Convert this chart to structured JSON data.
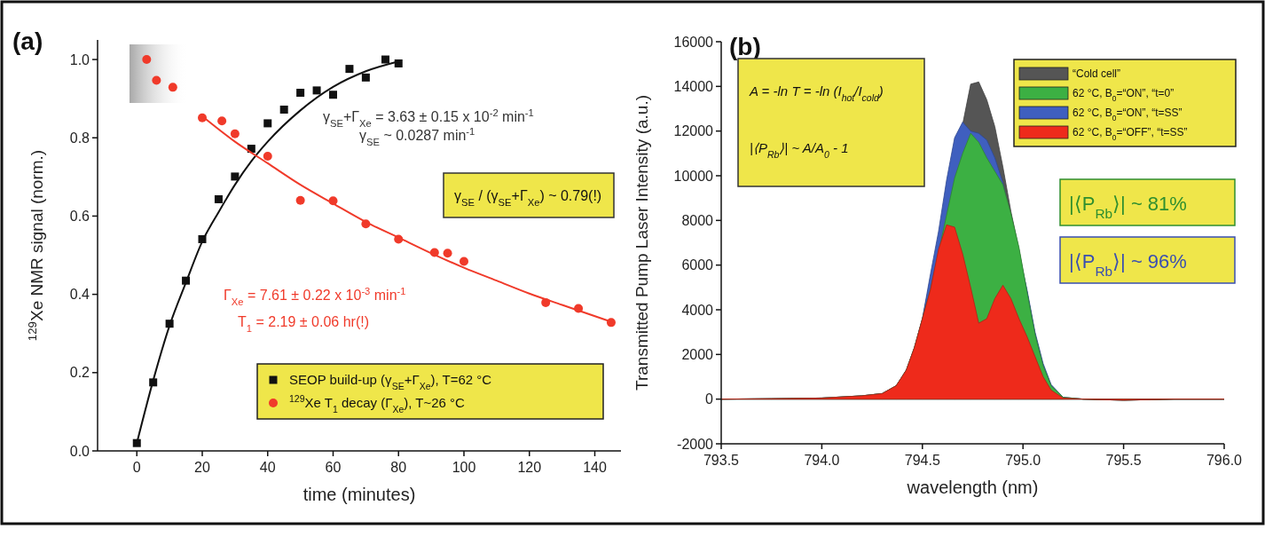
{
  "chart_data": [
    {
      "type": "scatter",
      "title": "(a)",
      "xlabel": "time (minutes)",
      "ylabel": "$^{129}$Xe NMR signal (norm.)",
      "xlim": [
        -12,
        148
      ],
      "ylim": [
        0,
        1.05
      ],
      "xticks": [
        0,
        20,
        40,
        60,
        80,
        100,
        120,
        140
      ],
      "yticks": [
        {
          "value": 0,
          "label": "0.0"
        },
        {
          "value": 0.2,
          "label": "0.2"
        },
        {
          "value": 0.4,
          "label": "0.4"
        },
        {
          "value": 0.6,
          "label": "0.6"
        },
        {
          "value": 0.8,
          "label": "0.8"
        },
        {
          "value": 1,
          "label": "1.0"
        }
      ],
      "legend": "bottom right",
      "annotations": [
        "γ$_{SE}$+Γ$_{Xe}$ = 3.63 ± 0.15 x 10$^{-2}$ min$^{-1}$",
        "γ$_{SE}$ ~ 0.0287 min$^{-1}$",
        "γ$_{SE}$ / (γ$_{SE}$+Γ$_{Xe}$) ~ 0.79(!)",
        "Γ$_{Xe}$ = 7.61 ± 0.22 x 10$^{-3}$ min$^{-1}$",
        "T$_{1}$ = 2.19 ± 0.06 hr(!)"
      ],
      "series": [
        {
          "name": "SEOP build-up (γ$_{SE}$+Γ$_{Xe}$), T=62 °C",
          "color": "#111111",
          "marker": "square",
          "x": [
            0,
            5,
            10,
            15,
            20,
            25,
            30,
            35,
            40,
            45,
            50,
            55,
            60,
            65,
            70,
            76,
            80
          ],
          "values": [
            0.02,
            0.175,
            0.325,
            0.435,
            0.541,
            0.643,
            0.701,
            0.772,
            0.837,
            0.872,
            0.915,
            0.921,
            0.91,
            0.976,
            0.954,
            1.0,
            0.99
          ]
        },
        {
          "name": "$^{129}$Xe T$_{1}$ decay (Γ$_{Xe}$), T~26 °C",
          "color": "#f03a2a",
          "marker": "circle",
          "x": [
            3,
            6,
            11,
            20,
            26,
            30,
            40,
            50,
            60,
            70,
            80,
            91,
            95,
            100,
            125,
            135,
            145
          ],
          "values": [
            1.0,
            0.947,
            0.929,
            0.851,
            0.843,
            0.81,
            0.753,
            0.64,
            0.639,
            0.58,
            0.541,
            0.507,
            0.505,
            0.484,
            0.379,
            0.364,
            0.328
          ]
        },
        {
          "type": "line",
          "color": "#111111",
          "marker": "none",
          "x": [
            0,
            5,
            10,
            15,
            20,
            25,
            30,
            35,
            40,
            50,
            60,
            70,
            80
          ],
          "values": [
            0.02,
            0.18,
            0.32,
            0.43,
            0.535,
            0.61,
            0.68,
            0.74,
            0.79,
            0.87,
            0.93,
            0.97,
            0.995
          ]
        },
        {
          "type": "line",
          "color": "#f03a2a",
          "marker": "none",
          "x": [
            20,
            30,
            40,
            50,
            60,
            70,
            80,
            90,
            100,
            110,
            120,
            130,
            145
          ],
          "values": [
            0.855,
            0.79,
            0.735,
            0.68,
            0.632,
            0.585,
            0.545,
            0.505,
            0.468,
            0.435,
            0.402,
            0.373,
            0.33
          ]
        }
      ]
    },
    {
      "type": "area",
      "title": "(b)",
      "xlabel": "wavelength (nm)",
      "ylabel": "Transmitted Pump Laser Intensity (a.u.)",
      "xlim": [
        793.5,
        796.0
      ],
      "ylim": [
        -2000,
        16000
      ],
      "xticks": [
        793.5,
        {
          "value": 794,
          "label": "794.0"
        },
        794.5,
        {
          "value": 795,
          "label": "795.0"
        },
        795.5,
        {
          "value": 796,
          "label": "796.0"
        }
      ],
      "yticks": [
        -2000,
        0,
        2000,
        4000,
        6000,
        8000,
        10000,
        12000,
        14000,
        16000
      ],
      "legend": "top right",
      "annotations": [
        "A = -ln T = -ln (I$_{hot}$/I$_{cold}$)",
        "|⟨P$_{Rb}$⟩| ~ A/A$_{0}$ - 1",
        "|⟨P$_{Rb}$⟩| ~ 81%",
        "|⟨P$_{Rb}$⟩| ~ 96%"
      ],
      "x": [
        793.5,
        793.75,
        794.0,
        794.2,
        794.3,
        794.37,
        794.42,
        794.46,
        794.5,
        794.54,
        794.58,
        794.62,
        794.66,
        794.7,
        794.74,
        794.78,
        794.82,
        794.86,
        794.9,
        794.94,
        794.98,
        795.02,
        795.06,
        795.1,
        795.14,
        795.2,
        795.3,
        795.5,
        795.75,
        796.0
      ],
      "series": [
        {
          "name": "“Cold cell”",
          "color": "#555555",
          "values": [
            0,
            20,
            50,
            150,
            250,
            600,
            1300,
            2300,
            3600,
            null,
            null,
            null,
            null,
            12300,
            14100,
            14200,
            13400,
            12200,
            10400,
            8400,
            6700,
            4800,
            2900,
            1500,
            600,
            80,
            0,
            -50,
            0,
            0
          ]
        },
        {
          "name": "62 °C, B$_{0}$=“ON”, “t=0”",
          "color": "#3cb043",
          "values": [
            0,
            20,
            50,
            150,
            250,
            600,
            1300,
            2300,
            3600,
            4900,
            null,
            null,
            9900,
            11000,
            11900,
            11500,
            10800,
            10200,
            9600,
            8300,
            6800,
            4800,
            2900,
            1500,
            600,
            80,
            0,
            -50,
            0,
            0
          ]
        },
        {
          "name": "62 °C, B$_{0}$=“ON”, “t=SS”",
          "color": "#3f5fbf",
          "values": [
            0,
            20,
            50,
            150,
            250,
            600,
            1300,
            2300,
            3600,
            5600,
            7500,
            9800,
            11700,
            12400,
            12000,
            11900,
            11600,
            10800,
            9700,
            8000,
            6500,
            4900,
            3000,
            1600,
            650,
            80,
            0,
            -50,
            0,
            0
          ]
        },
        {
          "name": "62 °C, B$_{0}$=“OFF”, “t=SS”",
          "color": "#ee2a1b",
          "values": [
            0,
            20,
            50,
            150,
            250,
            600,
            1300,
            2300,
            3600,
            4900,
            6700,
            7800,
            7700,
            6500,
            5000,
            3400,
            3600,
            4500,
            5100,
            4500,
            3600,
            2800,
            1900,
            1000,
            400,
            50,
            0,
            -50,
            0,
            0
          ]
        }
      ]
    }
  ]
}
